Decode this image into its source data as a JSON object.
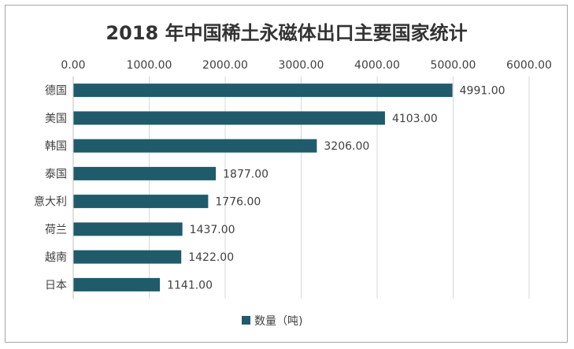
{
  "chart_data": {
    "type": "bar",
    "orientation": "horizontal",
    "title": "2018 年中国稀土永磁体出口主要国家统计",
    "categories": [
      "德国",
      "美国",
      "韩国",
      "泰国",
      "意大利",
      "荷兰",
      "越南",
      "日本"
    ],
    "series": [
      {
        "name": "数量（吨)",
        "values": [
          4991,
          4103,
          3206,
          1877,
          1776,
          1437,
          1422,
          1141
        ],
        "labels": [
          "4991.00",
          "4103.00",
          "3206.00",
          "1877.00",
          "1776.00",
          "1437.00",
          "1422.00",
          "1141.00"
        ],
        "color": "#1f5b6b"
      }
    ],
    "xlim": [
      0,
      6000
    ],
    "xticks": [
      "0.00",
      "1000.00",
      "2000.00",
      "3000.00",
      "4000.00",
      "5000.00",
      "6000.00"
    ],
    "xaxis_position": "top",
    "grid": true,
    "legend": "bottom"
  }
}
